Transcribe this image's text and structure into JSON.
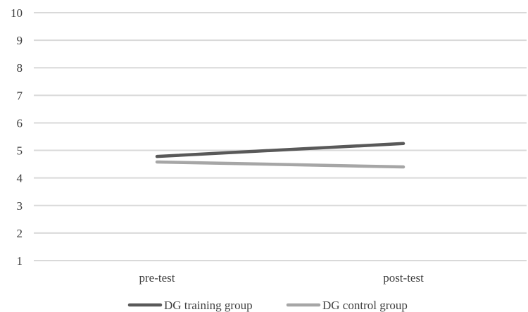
{
  "chart_data": {
    "type": "line",
    "categories": [
      "pre-test",
      "post-test"
    ],
    "series": [
      {
        "name": "DG training group",
        "values": [
          4.78,
          5.25
        ],
        "color": "#595959"
      },
      {
        "name": "DG control group",
        "values": [
          4.58,
          4.4
        ],
        "color": "#a6a6a6"
      }
    ],
    "ylim": [
      1,
      10
    ],
    "yticks": [
      1,
      2,
      3,
      4,
      5,
      6,
      7,
      8,
      9,
      10
    ],
    "grid": true,
    "legend_position": "bottom",
    "gridline_color": "#d9d9d9"
  }
}
